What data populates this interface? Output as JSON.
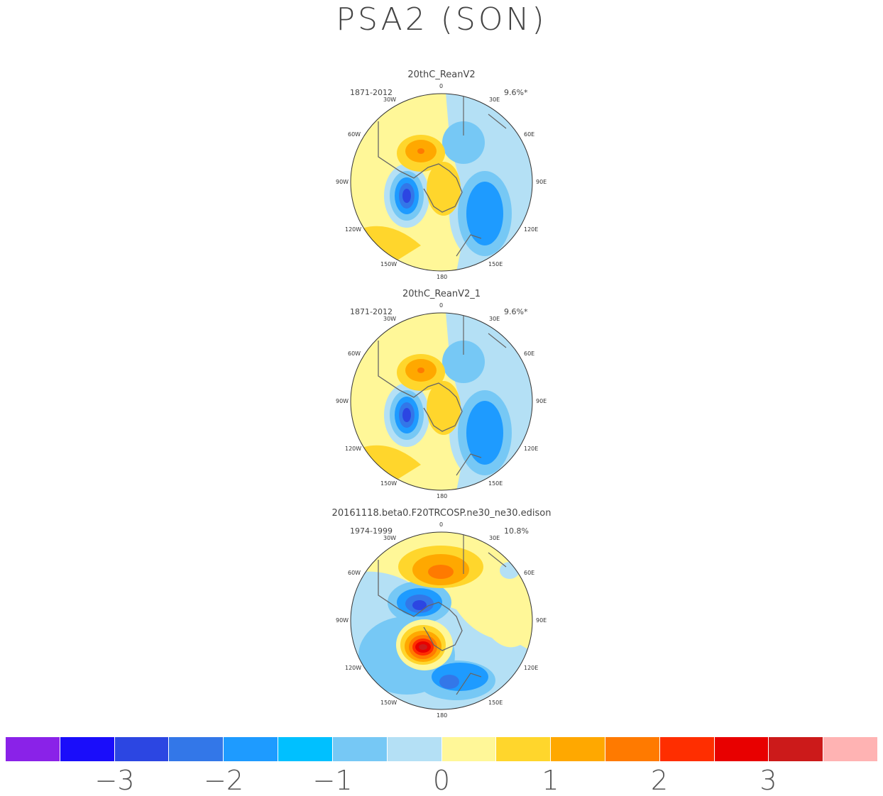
{
  "title": "PSA2 (SON)",
  "panels": [
    {
      "title": "20thC_ReanV2",
      "years": "1871-2012",
      "pct": "9.6%*"
    },
    {
      "title": "20thC_ReanV2_1",
      "years": "1871-2012",
      "pct": "9.6%*"
    },
    {
      "title": "20161118.beta0.F20TRCOSP.ne30_ne30.edison",
      "years": "1974-1999",
      "pct": "10.8%"
    }
  ],
  "lon_labels": {
    "top": "0",
    "n30w": "30W",
    "n30e": "30E",
    "n60w": "60W",
    "n60e": "60E",
    "n90w": "90W",
    "n90e": "90E",
    "n120w": "120W",
    "n120e": "120E",
    "n150w": "150W",
    "n150e": "150E",
    "bottom": "180"
  },
  "colorbar": {
    "colors": [
      "#8a22e8",
      "#1a0dfa",
      "#2c46e2",
      "#3377e8",
      "#1e9bff",
      "#00c0ff",
      "#76c8f5",
      "#b4e0f5",
      "#fff798",
      "#ffd62c",
      "#ffa800",
      "#ff7a00",
      "#ff2e00",
      "#e80000",
      "#cc1a1a",
      "#ffb3b3"
    ],
    "labels": [
      "-3",
      "-2",
      "-1",
      "0",
      "1",
      "2",
      "3"
    ]
  },
  "chart_data": {
    "type": "heatmap",
    "projection": "south polar stereographic",
    "colorbar_ticks": [
      -3,
      -2,
      -1,
      0,
      1,
      2,
      3
    ]
  }
}
